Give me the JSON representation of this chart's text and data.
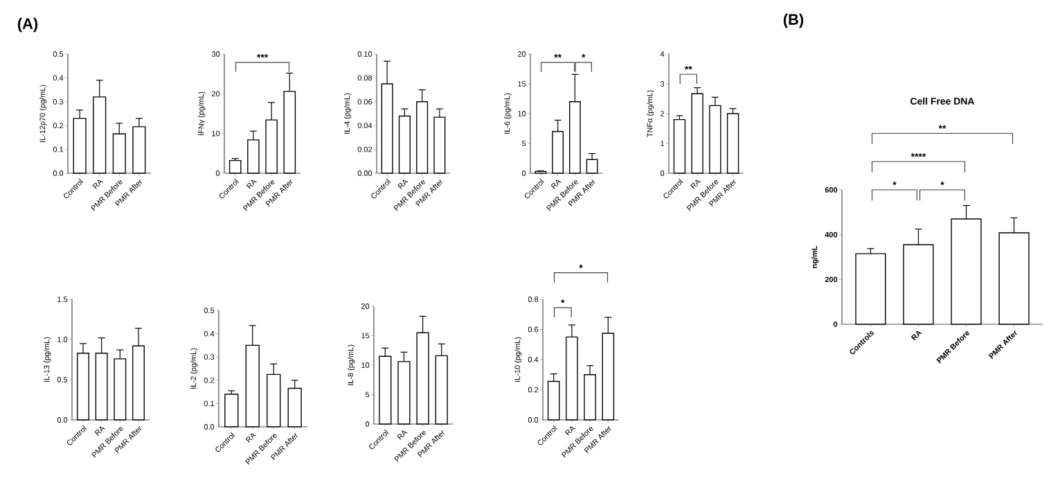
{
  "chart_data": [
    {
      "type": "bar",
      "categories": [
        "Control",
        "RA",
        "PMR Before",
        "PMR After"
      ],
      "values": [
        0.23,
        0.32,
        0.165,
        0.195
      ],
      "errors": [
        [
          0.23,
          0.265
        ],
        [
          0.32,
          0.39
        ],
        [
          0.165,
          0.21
        ],
        [
          0.195,
          0.23
        ]
      ],
      "color": "#ffffff",
      "ylabel": "IL-12p70 (pg/mL)",
      "ylim": [
        0,
        0.5
      ],
      "yticks": [
        {
          "value": 0,
          "label": "0.0"
        },
        0.1,
        0.2,
        0.3,
        0.4,
        0.5
      ],
      "annotations": [
        "(A)"
      ]
    },
    {
      "type": "bar",
      "categories": [
        "Control",
        "RA",
        "PMR Before",
        "PMR After"
      ],
      "values": [
        3.2,
        8.4,
        13.4,
        20.6
      ],
      "errors": [
        [
          3.2,
          3.7
        ],
        [
          8.4,
          10.6
        ],
        [
          13.4,
          17.8
        ],
        [
          20.6,
          25.2
        ]
      ],
      "color": "#ffffff",
      "ylabel": "IFNγ (pg/mL)",
      "ylim": [
        0,
        30
      ],
      "yticks": [
        0,
        10,
        20,
        30
      ],
      "annotations": [
        "***"
      ]
    },
    {
      "type": "bar",
      "categories": [
        "Control",
        "RA",
        "PMR Before",
        "PMR After"
      ],
      "values": [
        0.075,
        0.048,
        0.06,
        0.047
      ],
      "errors": [
        [
          0.075,
          0.094
        ],
        [
          0.048,
          0.054
        ],
        [
          0.06,
          0.07
        ],
        [
          0.047,
          0.054
        ]
      ],
      "color": "#ffffff",
      "ylabel": "IL-4 (pg/mL)",
      "ylim": [
        0,
        0.1
      ],
      "yticks": [
        {
          "value": 0,
          "label": "0.00"
        },
        0.02,
        0.04,
        0.06,
        0.08,
        {
          "value": 0.1,
          "label": "0.10"
        }
      ]
    },
    {
      "type": "bar",
      "categories": [
        "Control",
        "RA",
        "PMR Before",
        "PMR After"
      ],
      "values": [
        0.3,
        7.0,
        12.0,
        2.3
      ],
      "errors": [
        [
          0.3,
          0.4
        ],
        [
          7.0,
          8.9
        ],
        [
          12.0,
          16.6
        ],
        [
          2.3,
          3.3
        ]
      ],
      "color": "#ffffff",
      "ylabel": "IL-6 (pg/mL)",
      "ylim": [
        0,
        20
      ],
      "yticks": [
        0,
        5,
        10,
        15,
        20
      ],
      "annotations": [
        "**",
        "*"
      ]
    },
    {
      "type": "bar",
      "categories": [
        "Control",
        "RA",
        "PMR Before",
        "PMR After"
      ],
      "values": [
        1.8,
        2.67,
        2.27,
        2.0
      ],
      "errors": [
        [
          1.8,
          1.93
        ],
        [
          2.67,
          2.87
        ],
        [
          2.27,
          2.55
        ],
        [
          2.0,
          2.17
        ]
      ],
      "color": "#ffffff",
      "ylabel": "TNFα (pg/mL)",
      "ylim": [
        0,
        4
      ],
      "yticks": [
        0,
        1,
        2,
        3,
        4
      ],
      "annotations": [
        "**"
      ]
    },
    {
      "type": "bar",
      "categories": [
        "Control",
        "RA",
        "PMR Before",
        "PMR After"
      ],
      "values": [
        0.83,
        0.83,
        0.76,
        0.92
      ],
      "errors": [
        [
          0.83,
          0.95
        ],
        [
          0.83,
          1.02
        ],
        [
          0.76,
          0.87
        ],
        [
          0.92,
          1.14
        ]
      ],
      "color": "#ffffff",
      "ylabel": "IL-13 (pg/mL)",
      "ylim": [
        0,
        1.5
      ],
      "yticks": [
        {
          "value": 0,
          "label": "0.0"
        },
        0.5,
        {
          "value": 1,
          "label": "1.0"
        },
        1.5
      ]
    },
    {
      "type": "bar",
      "categories": [
        "Control",
        "RA",
        "PMR Before",
        "PMR After"
      ],
      "values": [
        0.14,
        0.35,
        0.225,
        0.165
      ],
      "errors": [
        [
          0.14,
          0.155
        ],
        [
          0.35,
          0.435
        ],
        [
          0.225,
          0.27
        ],
        [
          0.165,
          0.2
        ]
      ],
      "color": "#ffffff",
      "ylabel": "IL-2 (pg/mL)",
      "ylim": [
        0,
        0.5
      ],
      "yticks": [
        {
          "value": 0,
          "label": "0.0"
        },
        0.1,
        0.2,
        0.3,
        0.4,
        0.5
      ]
    },
    {
      "type": "bar",
      "categories": [
        "Control",
        "RA",
        "PMR Before",
        "PMR After"
      ],
      "values": [
        11.5,
        10.6,
        15.5,
        11.6
      ],
      "errors": [
        [
          11.5,
          12.9
        ],
        [
          10.6,
          12.2
        ],
        [
          15.5,
          18.3
        ],
        [
          11.6,
          13.6
        ]
      ],
      "color": "#ffffff",
      "ylabel": "IL-8 (pg/mL)",
      "ylim": [
        0,
        20
      ],
      "yticks": [
        0,
        5,
        10,
        15,
        20
      ]
    },
    {
      "type": "bar",
      "categories": [
        "Control",
        "RA",
        "PMR Before",
        "PMR After"
      ],
      "values": [
        0.255,
        0.55,
        0.3,
        0.575
      ],
      "errors": [
        [
          0.255,
          0.305
        ],
        [
          0.55,
          0.63
        ],
        [
          0.3,
          0.36
        ],
        [
          0.575,
          0.68
        ]
      ],
      "color": "#ffffff",
      "ylabel": "IL-10 (pg/mL)",
      "ylim": [
        0,
        0.8
      ],
      "yticks": [
        {
          "value": 0,
          "label": "0.0"
        },
        0.2,
        0.4,
        0.6,
        0.8
      ],
      "annotations": [
        "*",
        "*"
      ]
    },
    {
      "type": "bar",
      "title": "Cell Free DNA",
      "categories": [
        "Controls",
        "RA",
        "PMR Before",
        "PMR After"
      ],
      "values": [
        315,
        355,
        470,
        408
      ],
      "errors": [
        [
          315,
          338
        ],
        [
          355,
          425
        ],
        [
          470,
          530
        ],
        [
          408,
          475
        ]
      ],
      "color": "#ffffff",
      "ylabel": "ng/mL",
      "ylim": [
        0,
        600
      ],
      "yticks": [
        0,
        200,
        400,
        600
      ],
      "annotations": [
        "(B)",
        "*",
        "*",
        "****",
        "**"
      ]
    }
  ]
}
